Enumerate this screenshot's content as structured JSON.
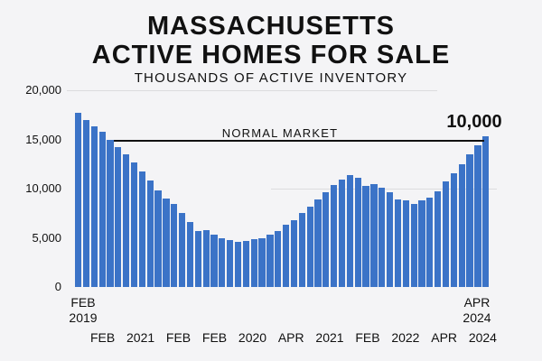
{
  "chart_data": {
    "type": "bar",
    "title": "MASSACHUSETTS ACTIVE HOMES FOR SALE",
    "title_lines": [
      "MASSACHUSETTS",
      "ACTIVE HOMES FOR SALE"
    ],
    "subtitle": "THOUSANDS OF ACTIVE INVENTORY",
    "xlabel": "",
    "ylabel": "",
    "ylim": [
      0,
      20000
    ],
    "yticks": [
      "20,000",
      "15,000",
      "10,000",
      "5,000",
      "0"
    ],
    "x_start_label": [
      "FEB",
      "2019"
    ],
    "x_end_label": [
      "APR",
      "2024"
    ],
    "x_bottom_labels": [
      "FEB",
      "2021",
      "FEB",
      "FEB",
      "2020",
      "APR",
      "2021",
      "FEB",
      "2022",
      "APR",
      "2024"
    ],
    "values": [
      17700,
      17000,
      16300,
      15800,
      15000,
      14200,
      13500,
      12700,
      11700,
      10800,
      9800,
      9000,
      8400,
      7500,
      6600,
      5700,
      5800,
      5300,
      5000,
      4800,
      4600,
      4700,
      4900,
      5000,
      5300,
      5700,
      6300,
      6800,
      7500,
      8200,
      8900,
      9600,
      10400,
      10900,
      11400,
      11100,
      10300,
      10500,
      10100,
      9600,
      8900,
      8800,
      8400,
      8800,
      9100,
      9700,
      10700,
      11600,
      12500,
      13500,
      14400,
      15300
    ],
    "reference_line": {
      "label": "NORMAL MARKET",
      "value": 15000
    },
    "annotation": "10,000",
    "grid": true,
    "legend": null,
    "bar_color": "#3b73c7"
  }
}
